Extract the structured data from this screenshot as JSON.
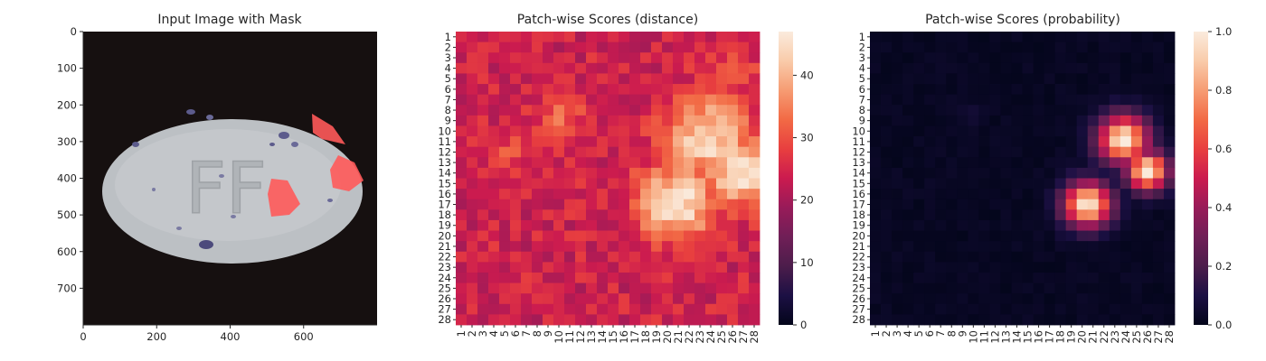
{
  "chart_data": [
    {
      "type": "image",
      "title": "Input Image with Mask",
      "xlim": [
        0,
        800
      ],
      "ylim": [
        800,
        0
      ],
      "xticks": [
        0,
        200,
        400,
        600
      ],
      "yticks": [
        0,
        100,
        200,
        300,
        400,
        500,
        600,
        700
      ],
      "content": "gray oval pill with embossed letters and purple specks on black background; red mask regions on right edge",
      "embossed_text": "FF",
      "mask_color": "#ff5a5a"
    },
    {
      "type": "heatmap",
      "title": "Patch-wise Scores (distance)",
      "rows": 28,
      "cols": 28,
      "row_labels": [
        "1",
        "2",
        "3",
        "4",
        "5",
        "6",
        "7",
        "8",
        "9",
        "10",
        "11",
        "12",
        "13",
        "14",
        "15",
        "16",
        "17",
        "18",
        "19",
        "20",
        "21",
        "22",
        "23",
        "24",
        "25",
        "26",
        "27",
        "28"
      ],
      "col_labels": [
        "1",
        "2",
        "3",
        "4",
        "5",
        "6",
        "7",
        "8",
        "9",
        "10",
        "11",
        "12",
        "13",
        "14",
        "15",
        "16",
        "17",
        "18",
        "19",
        "20",
        "21",
        "22",
        "23",
        "24",
        "25",
        "26",
        "27",
        "28"
      ],
      "colormap": "rocket",
      "vmin": 0,
      "vmax": 47,
      "colorbar_ticks": [
        0,
        10,
        20,
        30,
        40
      ],
      "baseline": 24,
      "peaks": [
        {
          "row": 10.8,
          "col": 23.8,
          "value": 44,
          "spread": 2.8
        },
        {
          "row": 13.8,
          "col": 26.8,
          "value": 47,
          "spread": 2.2
        },
        {
          "row": 16.8,
          "col": 20.8,
          "value": 47,
          "spread": 2.4
        },
        {
          "row": 8.3,
          "col": 10.2,
          "value": 33,
          "spread": 1.5
        },
        {
          "row": 11.8,
          "col": 5.5,
          "value": 29,
          "spread": 1.6
        },
        {
          "row": 4.5,
          "col": 26.0,
          "value": 31,
          "spread": 1.6
        }
      ]
    },
    {
      "type": "heatmap",
      "title": "Patch-wise Scores (probability)",
      "rows": 28,
      "cols": 28,
      "row_labels": [
        "1",
        "2",
        "3",
        "4",
        "5",
        "6",
        "7",
        "8",
        "9",
        "10",
        "11",
        "12",
        "13",
        "14",
        "15",
        "16",
        "17",
        "18",
        "19",
        "20",
        "21",
        "22",
        "23",
        "24",
        "25",
        "26",
        "27",
        "28"
      ],
      "col_labels": [
        "1",
        "2",
        "3",
        "4",
        "5",
        "6",
        "7",
        "8",
        "9",
        "10",
        "11",
        "12",
        "13",
        "14",
        "15",
        "16",
        "17",
        "18",
        "19",
        "20",
        "21",
        "22",
        "23",
        "24",
        "25",
        "26",
        "27",
        "28"
      ],
      "colormap": "rocket",
      "vmin": 0.0,
      "vmax": 1.0,
      "colorbar_ticks": [
        "0.0",
        "0.2",
        "0.4",
        "0.6",
        "0.8",
        "1.0"
      ],
      "baseline": 0.02,
      "peaks": [
        {
          "row": 10.8,
          "col": 23.8,
          "value": 1.0,
          "spread": 1.6
        },
        {
          "row": 13.8,
          "col": 26.0,
          "value": 1.0,
          "spread": 1.3
        },
        {
          "row": 17.0,
          "col": 20.5,
          "value": 1.0,
          "spread": 1.5
        },
        {
          "row": 8.3,
          "col": 9.8,
          "value": 0.08,
          "spread": 0.8
        }
      ]
    }
  ]
}
